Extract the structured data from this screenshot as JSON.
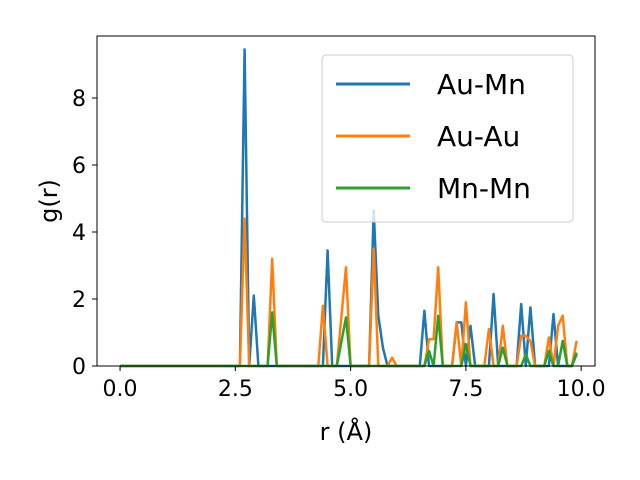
{
  "chart_data": {
    "type": "line",
    "title": "",
    "xlabel": "r (Å)",
    "ylabel": "g(r)",
    "xlim": [
      -0.5,
      10.3
    ],
    "ylim": [
      0,
      9.85
    ],
    "xticks": [
      0.0,
      2.5,
      5.0,
      7.5,
      10.0
    ],
    "xtick_labels": [
      "0.0",
      "2.5",
      "5.0",
      "7.5",
      "10.0"
    ],
    "yticks": [
      0,
      2,
      4,
      6,
      8
    ],
    "ytick_labels": [
      "0",
      "2",
      "4",
      "6",
      "8"
    ],
    "grid": false,
    "legend": "top-right",
    "series": [
      {
        "name": "Au-Mn",
        "color": "#1f77b4",
        "points": [
          [
            0,
            0
          ],
          [
            2.6,
            0
          ],
          [
            2.7,
            9.45
          ],
          [
            2.8,
            0
          ],
          [
            2.9,
            2.1
          ],
          [
            3.0,
            0
          ],
          [
            3.9,
            0
          ],
          [
            4.4,
            0
          ],
          [
            4.5,
            3.45
          ],
          [
            4.6,
            0
          ],
          [
            5.4,
            0
          ],
          [
            5.5,
            4.65
          ],
          [
            5.6,
            1.5
          ],
          [
            5.7,
            0.55
          ],
          [
            5.8,
            0
          ],
          [
            6.5,
            0
          ],
          [
            6.6,
            1.65
          ],
          [
            6.7,
            0
          ],
          [
            7.2,
            0
          ],
          [
            7.3,
            1.3
          ],
          [
            7.4,
            1.3
          ],
          [
            7.5,
            0
          ],
          [
            7.6,
            1.2
          ],
          [
            7.7,
            0
          ],
          [
            8.0,
            0
          ],
          [
            8.1,
            2.15
          ],
          [
            8.2,
            0
          ],
          [
            8.6,
            0
          ],
          [
            8.7,
            1.85
          ],
          [
            8.8,
            0
          ],
          [
            8.9,
            1.75
          ],
          [
            9.0,
            0
          ],
          [
            9.3,
            0
          ],
          [
            9.4,
            1.55
          ],
          [
            9.5,
            0
          ],
          [
            9.8,
            0
          ],
          [
            9.9,
            0.35
          ]
        ]
      },
      {
        "name": "Au-Au",
        "color": "#ff7f0e",
        "points": [
          [
            0,
            0
          ],
          [
            2.6,
            0
          ],
          [
            2.7,
            4.4
          ],
          [
            2.8,
            0
          ],
          [
            3.2,
            0
          ],
          [
            3.3,
            3.2
          ],
          [
            3.4,
            0
          ],
          [
            4.3,
            0
          ],
          [
            4.4,
            1.8
          ],
          [
            4.5,
            0
          ],
          [
            4.7,
            0
          ],
          [
            4.9,
            2.95
          ],
          [
            5.0,
            0
          ],
          [
            5.4,
            0
          ],
          [
            5.5,
            3.5
          ],
          [
            5.6,
            0
          ],
          [
            5.8,
            0
          ],
          [
            5.9,
            0.25
          ],
          [
            6.0,
            0
          ],
          [
            6.6,
            0
          ],
          [
            6.7,
            0.8
          ],
          [
            6.8,
            0.8
          ],
          [
            6.9,
            2.95
          ],
          [
            7.0,
            0
          ],
          [
            7.2,
            0
          ],
          [
            7.3,
            1.3
          ],
          [
            7.4,
            0
          ],
          [
            7.5,
            1.9
          ],
          [
            7.6,
            0
          ],
          [
            7.9,
            0
          ],
          [
            8.0,
            1.1
          ],
          [
            8.1,
            0
          ],
          [
            8.2,
            0
          ],
          [
            8.3,
            1.2
          ],
          [
            8.4,
            0
          ],
          [
            8.6,
            0
          ],
          [
            8.7,
            0.9
          ],
          [
            8.8,
            0.9
          ],
          [
            8.9,
            0.75
          ],
          [
            9.0,
            0
          ],
          [
            9.2,
            0
          ],
          [
            9.3,
            0.85
          ],
          [
            9.4,
            0
          ],
          [
            9.5,
            1.2
          ],
          [
            9.6,
            1.5
          ],
          [
            9.7,
            0
          ],
          [
            9.8,
            0
          ],
          [
            9.9,
            0.75
          ]
        ]
      },
      {
        "name": "Mn-Mn",
        "color": "#2ca02c",
        "points": [
          [
            0,
            0
          ],
          [
            3.2,
            0
          ],
          [
            3.3,
            1.6
          ],
          [
            3.4,
            0
          ],
          [
            4.7,
            0
          ],
          [
            4.9,
            1.45
          ],
          [
            5.0,
            0
          ],
          [
            6.6,
            0
          ],
          [
            6.7,
            0.45
          ],
          [
            6.8,
            0
          ],
          [
            6.9,
            1.5
          ],
          [
            7.0,
            0
          ],
          [
            7.4,
            0
          ],
          [
            7.5,
            0.65
          ],
          [
            7.6,
            0
          ],
          [
            8.2,
            0
          ],
          [
            8.3,
            0.55
          ],
          [
            8.4,
            0
          ],
          [
            8.7,
            0
          ],
          [
            8.8,
            0.35
          ],
          [
            8.9,
            0
          ],
          [
            9.2,
            0
          ],
          [
            9.3,
            0.45
          ],
          [
            9.4,
            0
          ],
          [
            9.5,
            0
          ],
          [
            9.6,
            0.75
          ],
          [
            9.7,
            0
          ],
          [
            9.8,
            0
          ],
          [
            9.9,
            0.4
          ]
        ]
      }
    ]
  }
}
